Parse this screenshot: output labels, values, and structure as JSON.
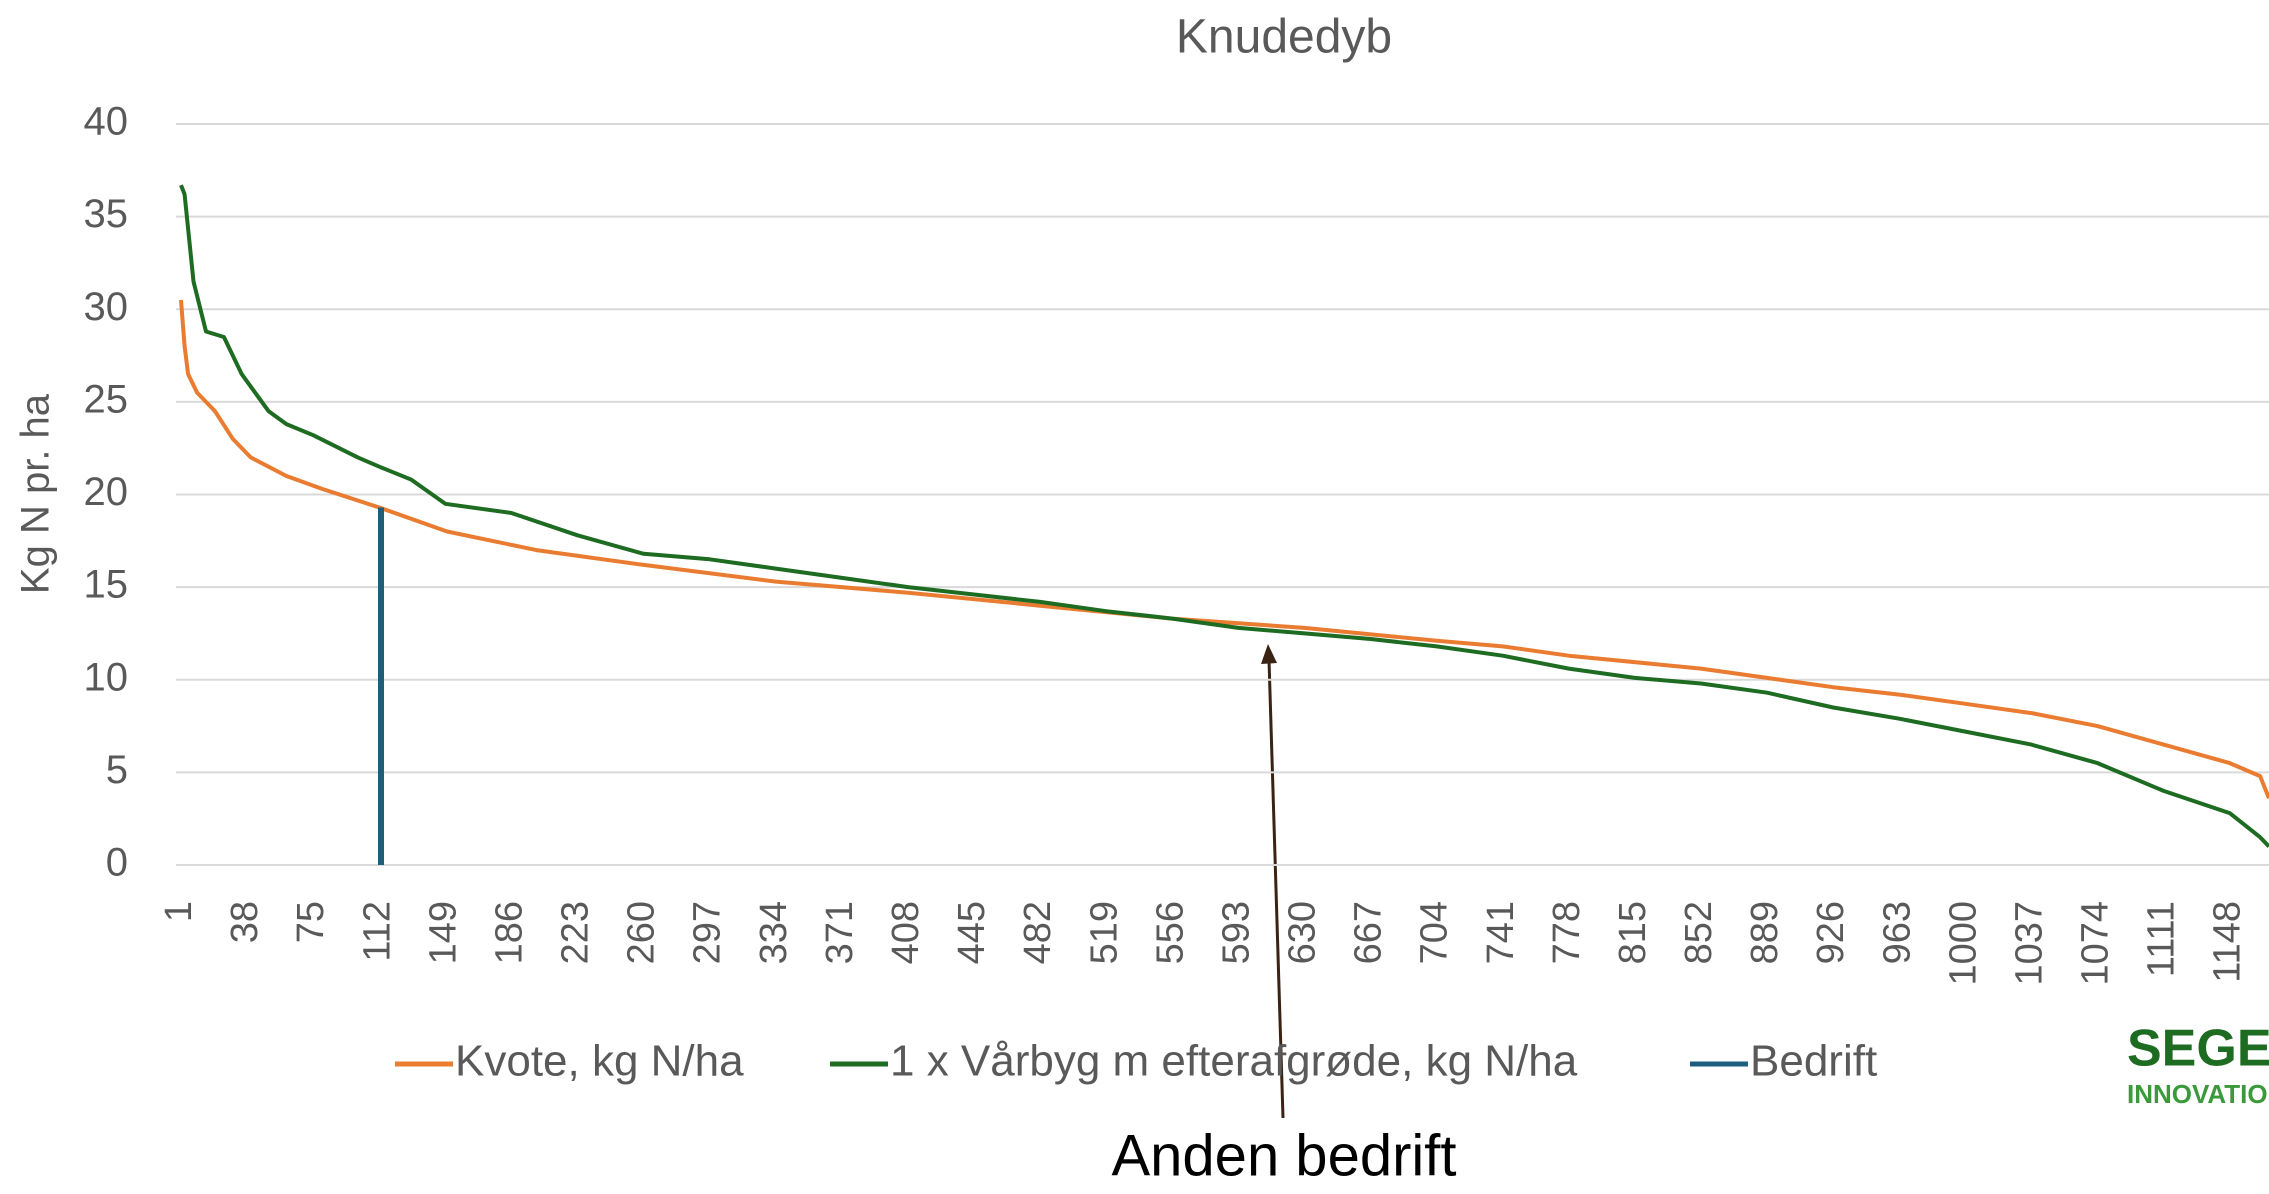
{
  "chart_data": {
    "type": "line",
    "title": "Knudedyb",
    "ylabel": "Kg N pr. ha",
    "xlim": [
      1,
      1170
    ],
    "ylim": [
      0,
      40
    ],
    "yticks": [
      0,
      5,
      10,
      15,
      20,
      25,
      30,
      35,
      40
    ],
    "grid": true,
    "xticks": [
      1,
      38,
      75,
      112,
      149,
      186,
      223,
      260,
      297,
      334,
      371,
      408,
      445,
      482,
      519,
      556,
      593,
      630,
      667,
      704,
      741,
      778,
      815,
      852,
      889,
      926,
      963,
      1000,
      1037,
      1074,
      1111,
      1148
    ],
    "legend": "bottom",
    "series": [
      {
        "name": "Kvote, kg N/ha",
        "color": "#e97c30",
        "x": [
          1,
          3,
          5,
          10,
          20,
          30,
          40,
          60,
          80,
          112,
          150,
          200,
          260,
          334,
          408,
          482,
          556,
          630,
          704,
          741,
          778,
          852,
          926,
          963,
          1000,
          1037,
          1074,
          1111,
          1148,
          1165,
          1170
        ],
        "values": [
          30.5,
          28,
          26.5,
          25.5,
          24.5,
          23,
          22,
          21,
          20.3,
          19.3,
          18,
          17,
          16.2,
          15.3,
          14.7,
          14,
          13.3,
          12.8,
          12.1,
          11.8,
          11.3,
          10.6,
          9.6,
          9.2,
          8.7,
          8.2,
          7.5,
          6.5,
          5.5,
          4.8,
          3.6
        ]
      },
      {
        "name": "1 x Vårbyg m efterafgrøde, kg N/ha",
        "color": "#1e6b22",
        "x": [
          1,
          3,
          8,
          15,
          25,
          35,
          50,
          60,
          75,
          100,
          112,
          130,
          149,
          186,
          223,
          260,
          297,
          334,
          371,
          408,
          445,
          482,
          519,
          556,
          593,
          630,
          667,
          704,
          741,
          778,
          815,
          852,
          889,
          926,
          963,
          1000,
          1037,
          1074,
          1111,
          1148,
          1165,
          1170
        ],
        "values": [
          36.7,
          36.2,
          31.5,
          28.8,
          28.5,
          26.5,
          24.5,
          23.8,
          23.2,
          22,
          21.5,
          20.8,
          19.5,
          19,
          17.8,
          16.8,
          16.5,
          16,
          15.5,
          15,
          14.6,
          14.2,
          13.7,
          13.3,
          12.8,
          12.5,
          12.2,
          11.8,
          11.3,
          10.6,
          10.1,
          9.8,
          9.3,
          8.5,
          7.9,
          7.2,
          6.5,
          5.5,
          4,
          2.8,
          1.5,
          1
        ]
      },
      {
        "name": "Bedrift",
        "color": "#1b5e7e",
        "x": [
          113,
          113
        ],
        "values": [
          0,
          19.3
        ]
      }
    ],
    "annotation": "Anden bedrift",
    "logo": {
      "top": "SEGE",
      "bottom": "INNOVATIO"
    }
  }
}
